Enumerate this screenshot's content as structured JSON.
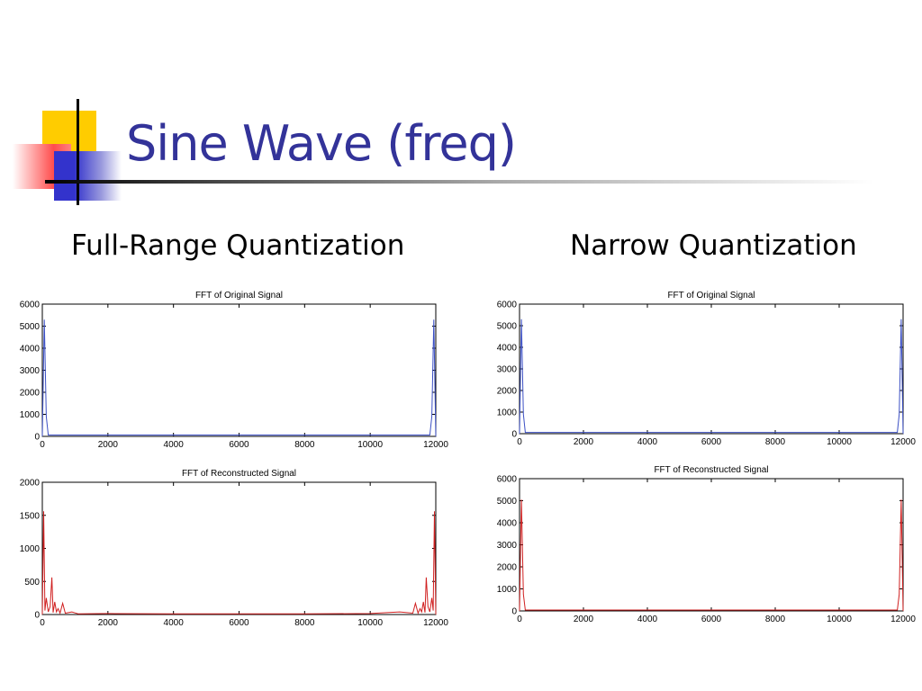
{
  "slide": {
    "title": "Sine Wave (freq)",
    "left_heading": "Full-Range Quantization",
    "right_heading": "Narrow Quantization"
  },
  "colors": {
    "title": "#333399",
    "original_series": "#3b4fc4",
    "reconstructed_series": "#d02020",
    "deco_yellow": "#ffcc00",
    "deco_blue": "#3333cc",
    "deco_red": "#ff4d4d"
  },
  "chart_data": [
    {
      "type": "line",
      "title": "FFT of Original Signal",
      "xlabel": "",
      "ylabel": "",
      "xlim": [
        0,
        12000
      ],
      "ylim": [
        0,
        6000
      ],
      "xticks": [
        0,
        2000,
        4000,
        6000,
        8000,
        10000,
        12000
      ],
      "yticks": [
        0,
        1000,
        2000,
        3000,
        4000,
        5000,
        6000
      ],
      "series": [
        {
          "color": "original",
          "points": [
            [
              0,
              0
            ],
            [
              60,
              5300
            ],
            [
              120,
              900
            ],
            [
              180,
              60
            ],
            [
              11820,
              60
            ],
            [
              11880,
              900
            ],
            [
              11940,
              5300
            ],
            [
              12000,
              0
            ]
          ]
        }
      ]
    },
    {
      "type": "line",
      "title": "FFT of Reconstructed Signal",
      "xlabel": "",
      "ylabel": "",
      "xlim": [
        0,
        12000
      ],
      "ylim": [
        0,
        2000
      ],
      "xticks": [
        0,
        2000,
        4000,
        6000,
        8000,
        10000,
        12000
      ],
      "yticks": [
        0,
        500,
        1000,
        1500,
        2000
      ],
      "series": [
        {
          "color": "reconstructed",
          "points": [
            [
              0,
              0
            ],
            [
              40,
              1560
            ],
            [
              80,
              60
            ],
            [
              120,
              250
            ],
            [
              180,
              40
            ],
            [
              240,
              120
            ],
            [
              290,
              560
            ],
            [
              330,
              30
            ],
            [
              380,
              190
            ],
            [
              430,
              40
            ],
            [
              480,
              90
            ],
            [
              540,
              20
            ],
            [
              620,
              170
            ],
            [
              700,
              20
            ],
            [
              900,
              40
            ],
            [
              1100,
              10
            ],
            [
              2000,
              15
            ],
            [
              4000,
              10
            ],
            [
              6000,
              10
            ],
            [
              8000,
              10
            ],
            [
              10000,
              15
            ],
            [
              10900,
              40
            ],
            [
              11300,
              20
            ],
            [
              11380,
              170
            ],
            [
              11460,
              20
            ],
            [
              11520,
              90
            ],
            [
              11570,
              40
            ],
            [
              11620,
              190
            ],
            [
              11670,
              30
            ],
            [
              11710,
              560
            ],
            [
              11760,
              120
            ],
            [
              11820,
              40
            ],
            [
              11880,
              250
            ],
            [
              11920,
              60
            ],
            [
              11960,
              1560
            ],
            [
              12000,
              0
            ]
          ]
        }
      ]
    },
    {
      "type": "line",
      "title": "FFT of Original Signal",
      "xlabel": "",
      "ylabel": "",
      "xlim": [
        0,
        12000
      ],
      "ylim": [
        0,
        6000
      ],
      "xticks": [
        0,
        2000,
        4000,
        6000,
        8000,
        10000,
        12000
      ],
      "yticks": [
        0,
        1000,
        2000,
        3000,
        4000,
        5000,
        6000
      ],
      "series": [
        {
          "color": "original",
          "points": [
            [
              0,
              0
            ],
            [
              60,
              5300
            ],
            [
              120,
              900
            ],
            [
              180,
              60
            ],
            [
              11820,
              60
            ],
            [
              11880,
              900
            ],
            [
              11940,
              5300
            ],
            [
              12000,
              0
            ]
          ]
        }
      ]
    },
    {
      "type": "line",
      "title": "FFT of Reconstructed Signal",
      "xlabel": "",
      "ylabel": "",
      "xlim": [
        0,
        12000
      ],
      "ylim": [
        0,
        6000
      ],
      "xticks": [
        0,
        2000,
        4000,
        6000,
        8000,
        10000,
        12000
      ],
      "yticks": [
        0,
        1000,
        2000,
        3000,
        4000,
        5000,
        6000
      ],
      "series": [
        {
          "color": "reconstructed",
          "points": [
            [
              0,
              0
            ],
            [
              60,
              5050
            ],
            [
              120,
              750
            ],
            [
              180,
              40
            ],
            [
              11820,
              40
            ],
            [
              11880,
              750
            ],
            [
              11940,
              5050
            ],
            [
              12000,
              0
            ]
          ]
        }
      ]
    }
  ]
}
